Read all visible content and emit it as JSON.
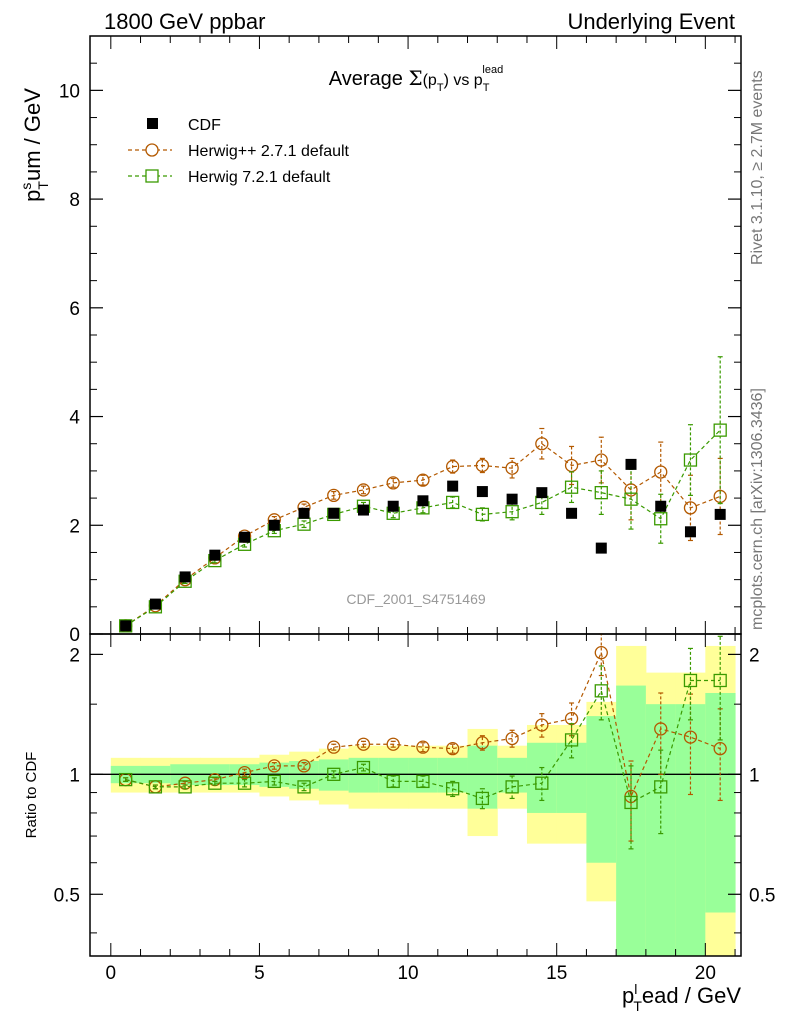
{
  "header": {
    "left": "1800 GeV ppbar",
    "right": "Underlying Event"
  },
  "side_labels": {
    "top": "Rivet 3.1.10, ≥ 2.7M events",
    "bottom": "mcplots.cern.ch [arXiv:1306.3436]"
  },
  "watermark": "CDF_2001_S4751469",
  "colors": {
    "data": "#000000",
    "herwigpp": "#b35900",
    "herwig7": "#3a9a00",
    "band_outer": "#ffff99",
    "band_inner": "#99ff99"
  },
  "chart_data": [
    {
      "type": "scatter",
      "panel": "main",
      "title": "Average Σ(pT) vs pT^lead",
      "ylabel": "pT^sum / GeV",
      "ylim": [
        0,
        11
      ],
      "yticks": [
        0,
        2,
        4,
        6,
        8,
        10
      ],
      "ytick_labels": [
        "0",
        "2",
        "4",
        "6",
        "8",
        "10"
      ],
      "legend": {
        "placement": "top-left",
        "entries": [
          "CDF",
          "Herwig++ 2.7.1 default",
          "Herwig 7.2.1 default"
        ]
      },
      "x": [
        0.5,
        1.5,
        2.5,
        3.5,
        4.5,
        5.5,
        6.5,
        7.5,
        8.5,
        9.5,
        10.5,
        11.5,
        12.5,
        13.5,
        14.5,
        15.5,
        16.5,
        17.5,
        18.5,
        19.5,
        20.5
      ],
      "series": [
        {
          "name": "CDF",
          "marker": "filled-square",
          "values": [
            0.15,
            0.55,
            1.05,
            1.45,
            1.78,
            2.0,
            2.22,
            2.22,
            2.28,
            2.35,
            2.45,
            2.72,
            2.62,
            2.48,
            2.6,
            2.22,
            1.58,
            3.12,
            2.35,
            1.88,
            2.2
          ]
        },
        {
          "name": "Herwig++ 2.7.1 default",
          "marker": "open-circle",
          "values": [
            0.15,
            0.52,
            1.0,
            1.4,
            1.8,
            2.1,
            2.33,
            2.55,
            2.65,
            2.78,
            2.83,
            3.08,
            3.1,
            3.05,
            3.5,
            3.1,
            3.2,
            2.65,
            2.98,
            2.32,
            2.53
          ],
          "errors": [
            0.02,
            0.03,
            0.04,
            0.04,
            0.05,
            0.06,
            0.06,
            0.07,
            0.07,
            0.08,
            0.09,
            0.12,
            0.13,
            0.18,
            0.28,
            0.35,
            0.42,
            0.55,
            0.55,
            0.6,
            0.7
          ]
        },
        {
          "name": "Herwig 7.2.1 default",
          "marker": "open-square",
          "values": [
            0.15,
            0.5,
            0.97,
            1.35,
            1.65,
            1.9,
            2.02,
            2.2,
            2.35,
            2.22,
            2.32,
            2.42,
            2.2,
            2.25,
            2.42,
            2.7,
            2.6,
            2.48,
            2.12,
            3.2,
            3.75
          ],
          "errors": [
            0.02,
            0.03,
            0.04,
            0.04,
            0.05,
            0.05,
            0.06,
            0.06,
            0.07,
            0.08,
            0.09,
            0.1,
            0.12,
            0.15,
            0.22,
            0.28,
            0.4,
            0.55,
            0.45,
            0.65,
            1.35
          ]
        }
      ]
    },
    {
      "type": "scatter",
      "panel": "ratio",
      "xlabel": "pT^lead / GeV",
      "ylabel": "Ratio to CDF",
      "xlim": [
        -0.7,
        21.2
      ],
      "xticks": [
        0,
        5,
        10,
        15,
        20
      ],
      "xtick_labels": [
        "0",
        "5",
        "10",
        "15",
        "20"
      ],
      "ylim": [
        0.35,
        2.25
      ],
      "yticks": [
        0.5,
        1,
        2
      ],
      "ytick_labels": [
        "0.5",
        "1",
        "2"
      ],
      "reference_line": 1,
      "bands": {
        "x_edges": [
          0,
          1,
          2,
          3,
          4,
          5,
          6,
          7,
          8,
          9,
          10,
          11,
          12,
          13,
          14,
          15,
          16,
          17,
          18,
          19,
          20,
          21
        ],
        "outer_low": [
          0.9,
          0.9,
          0.9,
          0.9,
          0.9,
          0.88,
          0.86,
          0.84,
          0.82,
          0.82,
          0.82,
          0.82,
          0.7,
          0.82,
          0.67,
          0.67,
          0.48,
          0.2,
          0.2,
          0.2,
          0.2
        ],
        "outer_high": [
          1.1,
          1.1,
          1.1,
          1.1,
          1.1,
          1.12,
          1.14,
          1.16,
          1.18,
          1.18,
          1.18,
          1.18,
          1.3,
          1.18,
          1.33,
          1.33,
          1.52,
          2.1,
          1.8,
          1.8,
          2.1
        ],
        "inner_low": [
          0.95,
          0.95,
          0.94,
          0.94,
          0.94,
          0.93,
          0.92,
          0.91,
          0.9,
          0.9,
          0.9,
          0.9,
          0.82,
          0.9,
          0.8,
          0.8,
          0.6,
          0.2,
          0.2,
          0.2,
          0.45
        ],
        "inner_high": [
          1.05,
          1.05,
          1.06,
          1.06,
          1.06,
          1.07,
          1.08,
          1.09,
          1.1,
          1.1,
          1.1,
          1.1,
          1.18,
          1.1,
          1.2,
          1.2,
          1.4,
          1.67,
          1.5,
          1.5,
          1.6
        ]
      },
      "x": [
        0.5,
        1.5,
        2.5,
        3.5,
        4.5,
        5.5,
        6.5,
        7.5,
        8.5,
        9.5,
        10.5,
        11.5,
        12.5,
        13.5,
        14.5,
        15.5,
        16.5,
        17.5,
        18.5,
        19.5,
        20.5
      ],
      "series": [
        {
          "name": "Herwig++ 2.7.1 default",
          "marker": "open-circle",
          "values": [
            0.97,
            0.93,
            0.95,
            0.97,
            1.01,
            1.05,
            1.05,
            1.17,
            1.19,
            1.19,
            1.17,
            1.16,
            1.2,
            1.23,
            1.33,
            1.38,
            2.02,
            0.88,
            1.3,
            1.24,
            1.16
          ],
          "errors": [
            0.01,
            0.01,
            0.01,
            0.01,
            0.02,
            0.02,
            0.02,
            0.02,
            0.02,
            0.02,
            0.03,
            0.03,
            0.05,
            0.06,
            0.09,
            0.13,
            0.25,
            0.2,
            0.3,
            0.35,
            0.3
          ]
        },
        {
          "name": "Herwig 7.2.1 default",
          "marker": "open-square",
          "values": [
            0.97,
            0.93,
            0.93,
            0.95,
            0.95,
            0.96,
            0.93,
            1.0,
            1.04,
            0.96,
            0.96,
            0.92,
            0.87,
            0.93,
            0.95,
            1.22,
            1.62,
            0.85,
            0.93,
            1.72,
            1.72
          ],
          "errors": [
            0.01,
            0.01,
            0.01,
            0.01,
            0.02,
            0.02,
            0.02,
            0.02,
            0.02,
            0.03,
            0.03,
            0.04,
            0.05,
            0.06,
            0.09,
            0.12,
            0.25,
            0.2,
            0.22,
            0.35,
            0.5
          ]
        }
      ]
    }
  ]
}
